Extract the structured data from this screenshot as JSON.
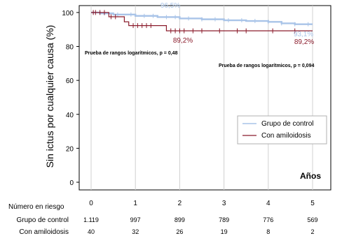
{
  "chart_data": {
    "type": "line",
    "subtype": "kaplan-meier",
    "ylabel": "Sin ictus por cualquier causa (%)",
    "xlabel": "Años",
    "ylim": [
      0,
      100
    ],
    "xlim": [
      0,
      5
    ],
    "yticks": [
      0,
      20,
      40,
      60,
      80,
      100
    ],
    "xticks": [
      0,
      1,
      2,
      3,
      4,
      5
    ],
    "grid": "vertical",
    "legend_position": "right",
    "legend": [
      "Grupo de control",
      "Con amiloidosis"
    ],
    "series": [
      {
        "name": "Grupo de control",
        "color": "#a9c4e8",
        "steps": [
          [
            0,
            100
          ],
          [
            0.2,
            99.5
          ],
          [
            0.5,
            98.8
          ],
          [
            1.0,
            98.0
          ],
          [
            1.5,
            97.3
          ],
          [
            2.0,
            96.5
          ],
          [
            2.5,
            96.0
          ],
          [
            3.0,
            95.4
          ],
          [
            3.5,
            95.0
          ],
          [
            4.0,
            94.5
          ],
          [
            4.3,
            93.6
          ],
          [
            4.6,
            93.1
          ],
          [
            5.0,
            93.1
          ]
        ],
        "censor_marks": [
          0.3,
          0.6,
          0.9,
          1.2,
          1.4,
          1.7,
          1.9,
          2.2,
          2.5,
          2.8,
          3.1,
          3.4,
          3.7,
          4.0,
          4.3,
          4.6,
          4.9
        ]
      },
      {
        "name": "Con amiloidosis",
        "color": "#8b1c2c",
        "steps": [
          [
            0,
            100
          ],
          [
            0.4,
            97.5
          ],
          [
            0.75,
            94.5
          ],
          [
            0.85,
            92.3
          ],
          [
            1.7,
            89.2
          ],
          [
            5.0,
            89.2
          ]
        ],
        "censor_marks": [
          0.05,
          0.1,
          0.2,
          0.3,
          0.45,
          0.55,
          0.95,
          1.05,
          1.15,
          1.25,
          1.35,
          1.8,
          1.9,
          2.0,
          2.1,
          2.3,
          2.5,
          2.9,
          3.3,
          3.5,
          4.1,
          4.6
        ]
      }
    ],
    "annotations": {
      "ctrl_top": "96,5%",
      "ctrl_end": "93,1%",
      "amy_mid": "89,2%",
      "amy_end": "89,2%",
      "pval_1": "Prueba de rangos logarítmicos, p = 0,48",
      "pval_2": "Prueba de rangos logarítmicos, p = 0,094"
    },
    "risk_table": {
      "title": "Número en riesgo",
      "times": [
        "0",
        "1",
        "2",
        "3",
        "4",
        "5"
      ],
      "rows": [
        {
          "label": "Grupo de control",
          "values": [
            "1.119",
            "997",
            "899",
            "789",
            "776",
            "569"
          ]
        },
        {
          "label": "Con amiloidosis",
          "values": [
            "40",
            "32",
            "26",
            "19",
            "8",
            "2"
          ]
        }
      ]
    }
  }
}
